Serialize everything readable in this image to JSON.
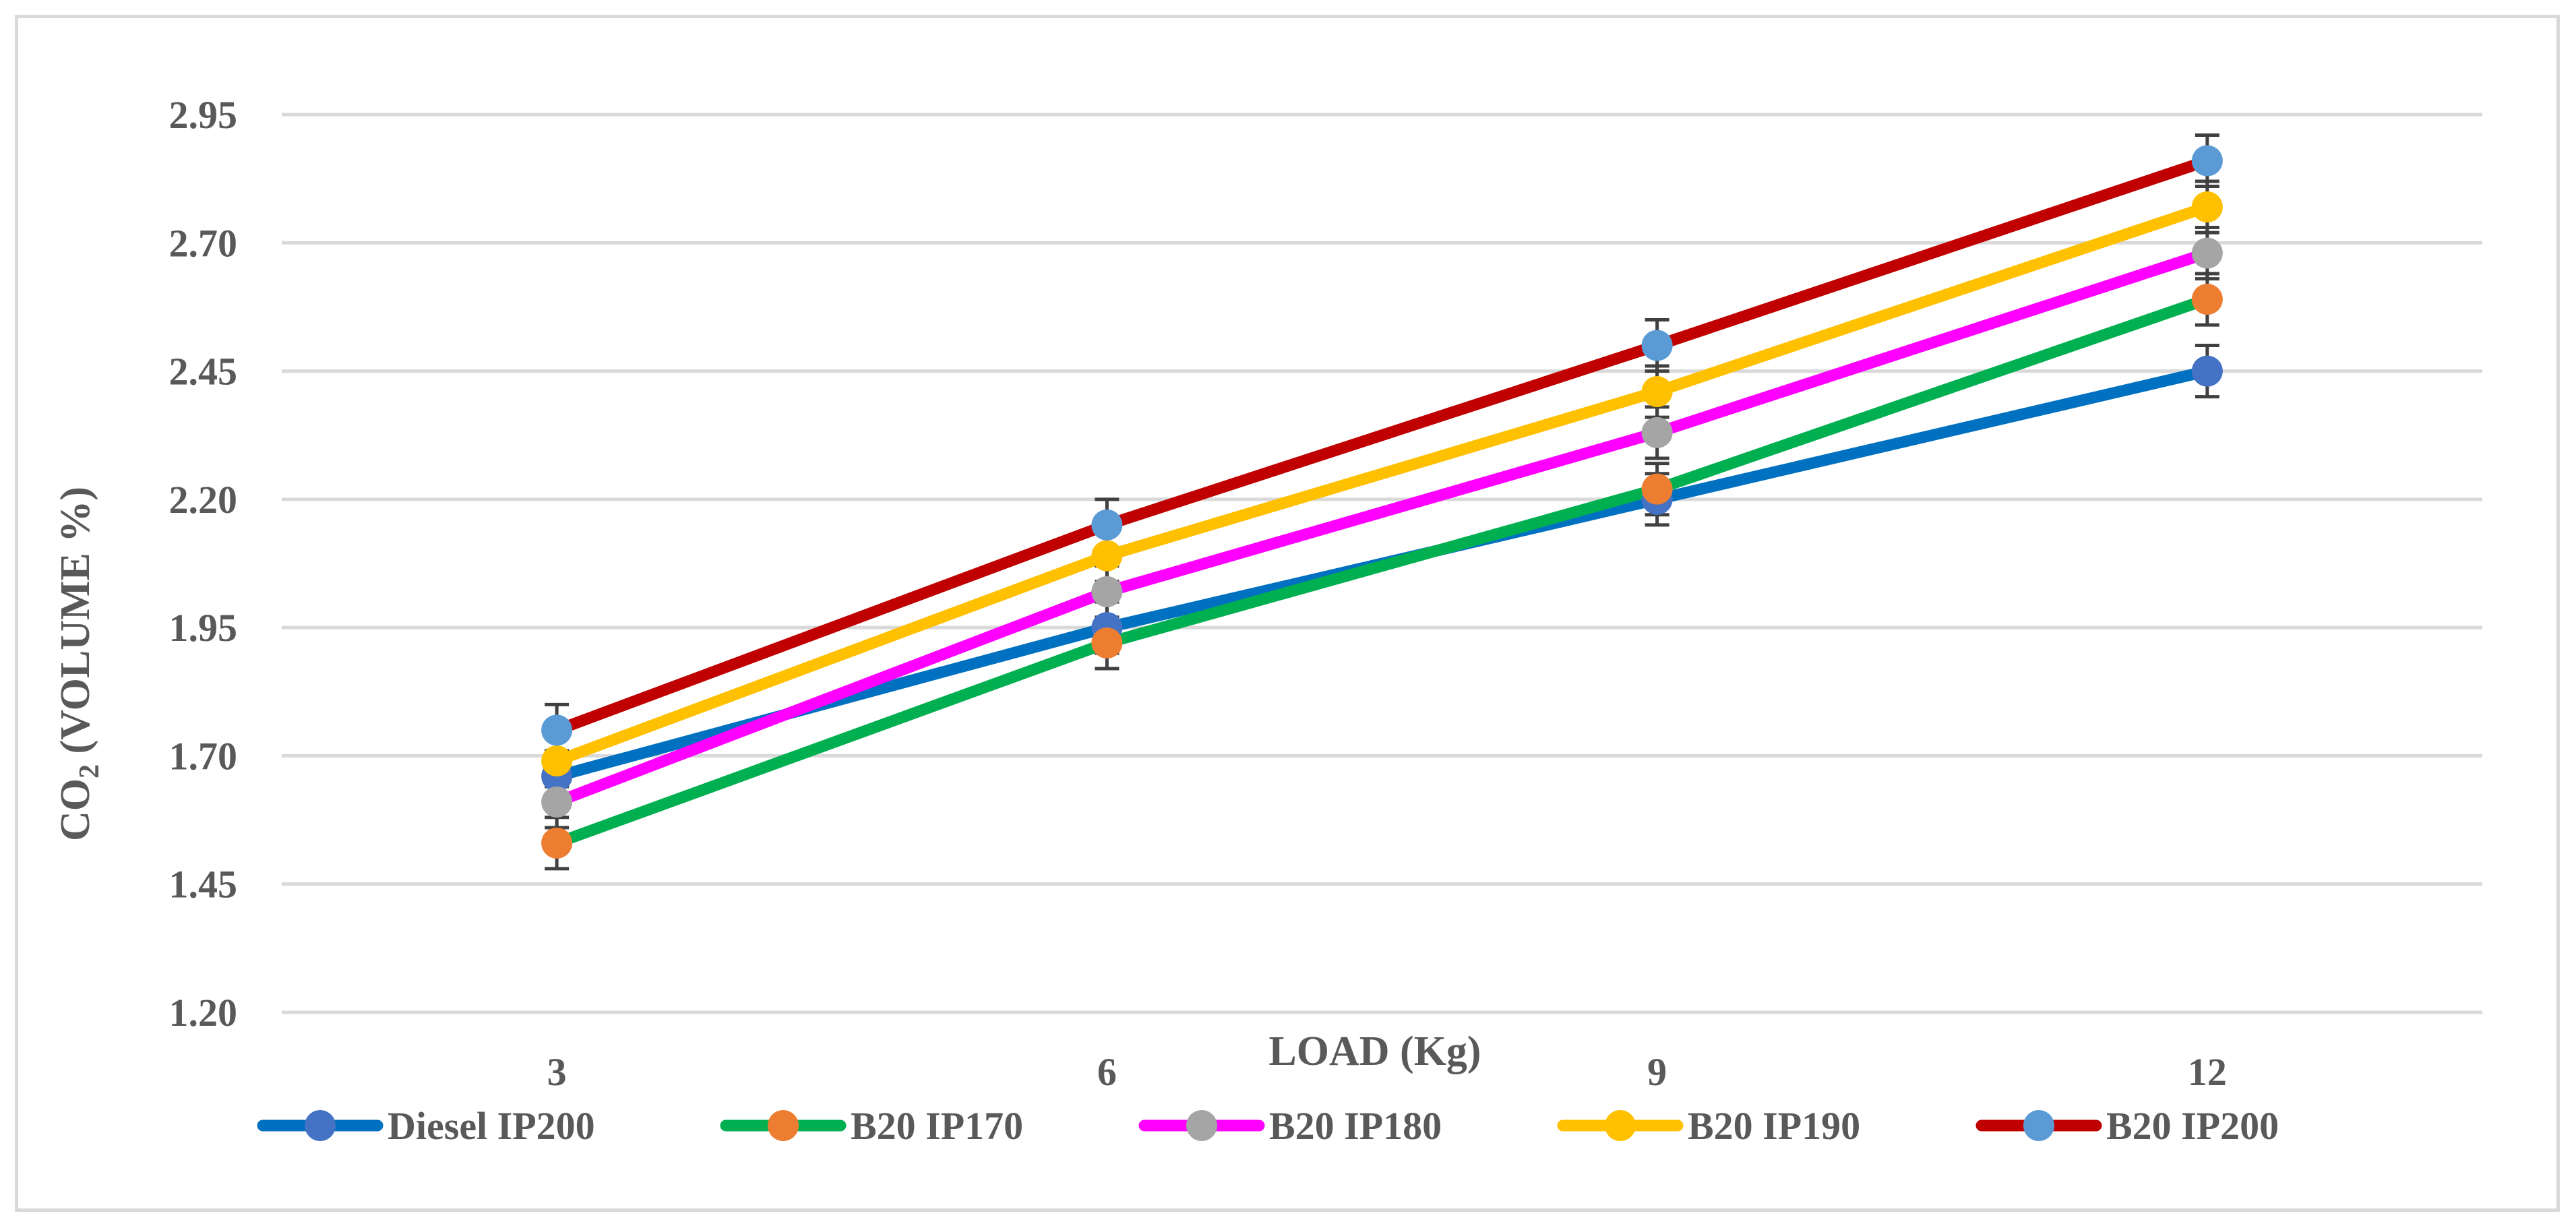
{
  "chart_data": {
    "type": "line",
    "title": "",
    "xlabel": "LOAD (Kg)",
    "ylabel": "CO",
    "ylabel_subscript": "2",
    "ylabel_suffix": " (VOLUME %)",
    "categories": [
      "3",
      "6",
      "9",
      "12"
    ],
    "y_ticks": [
      "1.20",
      "1.45",
      "1.70",
      "1.95",
      "2.20",
      "2.45",
      "2.70",
      "2.95"
    ],
    "ylim": [
      1.2,
      2.95
    ],
    "grid": true,
    "legend_position": "bottom",
    "error_bar": 0.05,
    "series": [
      {
        "name": "Diesel IP200",
        "line_color": "#0070c0",
        "marker_color": "#4472c4",
        "values": [
          1.66,
          1.95,
          2.2,
          2.45
        ]
      },
      {
        "name": "B20 IP170",
        "line_color": "#00b050",
        "marker_color": "#ed7d31",
        "values": [
          1.53,
          1.92,
          2.22,
          2.59
        ]
      },
      {
        "name": "B20 IP180",
        "line_color": "#ff00ff",
        "marker_color": "#a5a5a5",
        "values": [
          1.61,
          2.02,
          2.33,
          2.68
        ]
      },
      {
        "name": "B20 IP190",
        "line_color": "#ffc000",
        "marker_color": "#ffc000",
        "values": [
          1.69,
          2.09,
          2.41,
          2.77
        ]
      },
      {
        "name": "B20 IP200",
        "line_color": "#c00000",
        "marker_color": "#5b9bd5",
        "values": [
          1.75,
          2.15,
          2.5,
          2.86
        ]
      }
    ]
  }
}
